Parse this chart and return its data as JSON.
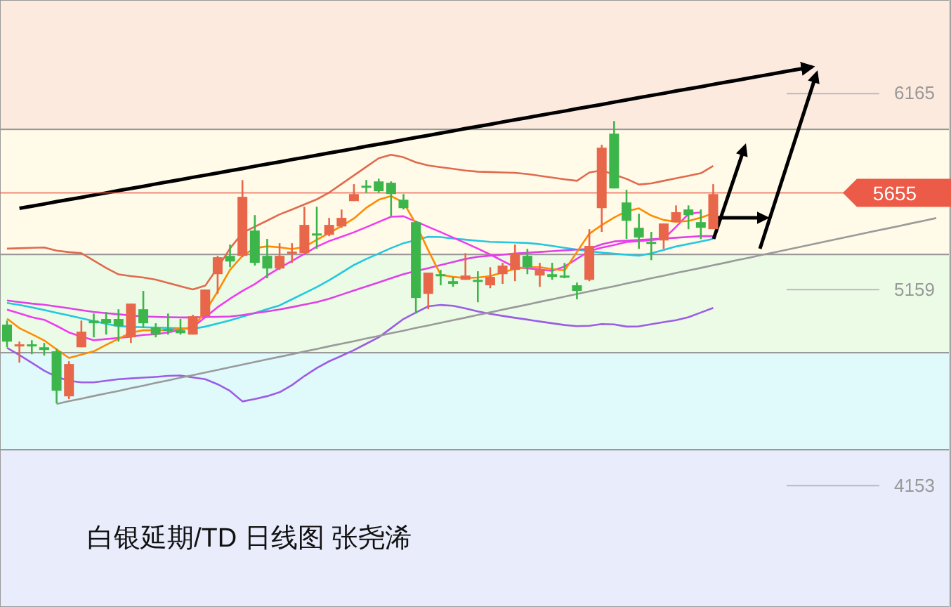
{
  "chart_data": {
    "type": "candlestick",
    "title": "白银延期/TD  日线图 张尧浠",
    "categories": [
      null,
      null,
      null,
      null,
      null,
      null,
      null,
      null,
      null,
      null,
      null,
      null,
      null,
      null,
      null,
      null,
      null,
      null,
      null,
      null,
      null,
      null,
      null,
      null,
      null,
      null,
      null,
      null,
      null,
      null,
      null,
      null,
      null,
      null,
      null,
      null,
      null,
      null,
      null,
      null,
      null,
      null,
      null,
      null,
      null,
      null,
      null,
      null,
      null,
      null,
      null,
      null,
      null,
      null,
      null,
      null,
      null,
      null,
      null,
      null,
      null,
      null,
      null,
      null,
      null,
      null,
      null,
      null,
      null,
      null,
      null,
      null,
      null,
      null,
      null,
      null
    ],
    "ohlc": [
      [
        4979,
        5000,
        4863,
        4892
      ],
      [
        4871,
        4892,
        4784,
        4878
      ],
      [
        4878,
        4899,
        4827,
        4871
      ],
      [
        4863,
        4885,
        4820,
        4849
      ],
      [
        4842,
        4856,
        4575,
        4640
      ],
      [
        4611,
        4791,
        4597,
        4777
      ],
      [
        4863,
        5000,
        4863,
        4943
      ],
      [
        5000,
        5036,
        4914,
        4986
      ],
      [
        5008,
        5044,
        4928,
        4986
      ],
      [
        5008,
        5058,
        4892,
        4971
      ],
      [
        4914,
        5087,
        4885,
        5087
      ],
      [
        5058,
        5152,
        4964,
        4986
      ],
      [
        4964,
        4986,
        4914,
        4928
      ],
      [
        4957,
        5036,
        4928,
        4950
      ],
      [
        4950,
        5008,
        4928,
        4935
      ],
      [
        4928,
        5029,
        4928,
        5022
      ],
      [
        5022,
        5159,
        5022,
        5159
      ],
      [
        5238,
        5332,
        5137,
        5325
      ],
      [
        5332,
        5390,
        5274,
        5303
      ],
      [
        5332,
        5721,
        5325,
        5635
      ],
      [
        5462,
        5541,
        5282,
        5296
      ],
      [
        5332,
        5419,
        5217,
        5267
      ],
      [
        5267,
        5397,
        5260,
        5332
      ],
      [
        5346,
        5397,
        5296,
        5354
      ],
      [
        5346,
        5584,
        5346,
        5491
      ],
      [
        5447,
        5584,
        5368,
        5440
      ],
      [
        5440,
        5527,
        5433,
        5491
      ],
      [
        5483,
        5570,
        5476,
        5527
      ],
      [
        5613,
        5700,
        5613,
        5649
      ],
      [
        5692,
        5721,
        5656,
        5685
      ],
      [
        5714,
        5728,
        5656,
        5664
      ],
      [
        5707,
        5714,
        5534,
        5649
      ],
      [
        5620,
        5649,
        5570,
        5577
      ],
      [
        5505,
        5512,
        5036,
        5116
      ],
      [
        5137,
        5246,
        5058,
        5246
      ],
      [
        5238,
        5260,
        5181,
        5231
      ],
      [
        5202,
        5224,
        5173,
        5188
      ],
      [
        5209,
        5346,
        5209,
        5231
      ],
      [
        5209,
        5253,
        5094,
        5202
      ],
      [
        5181,
        5274,
        5166,
        5224
      ],
      [
        5238,
        5296,
        5188,
        5282
      ],
      [
        5260,
        5390,
        5202,
        5346
      ],
      [
        5332,
        5368,
        5238,
        5274
      ],
      [
        5231,
        5296,
        5173,
        5260
      ],
      [
        5238,
        5296,
        5209,
        5224
      ],
      [
        5231,
        5296,
        5217,
        5224
      ],
      [
        5181,
        5195,
        5109,
        5152
      ],
      [
        5209,
        5469,
        5202,
        5383
      ],
      [
        5577,
        5902,
        5455,
        5887
      ],
      [
        5959,
        6024,
        5678,
        5678
      ],
      [
        5606,
        5671,
        5419,
        5512
      ],
      [
        5476,
        5548,
        5368,
        5426
      ],
      [
        5404,
        5455,
        5310,
        5397
      ],
      [
        5411,
        5498,
        5368,
        5498
      ],
      [
        5505,
        5591,
        5505,
        5556
      ],
      [
        5570,
        5591,
        5469,
        5541
      ],
      [
        5505,
        5570,
        5419,
        5476
      ],
      [
        5469,
        5700,
        5469,
        5649
      ],
      null,
      null,
      null,
      null,
      null,
      null,
      null,
      null,
      null,
      null,
      null,
      null,
      null,
      null,
      null,
      null,
      null,
      null
    ],
    "colors": [
      "#3cb54a",
      "#e8674a",
      "#3cb54a",
      "#3cb54a",
      "#3cb54a",
      "#e8674a",
      "#e8674a",
      "#3cb54a",
      "#3cb54a",
      "#3cb54a",
      "#e8674a",
      "#3cb54a",
      "#3cb54a",
      "#3cb54a",
      "#3cb54a",
      "#e8674a",
      "#e8674a",
      "#e8674a",
      "#3cb54a",
      "#e8674a",
      "#3cb54a",
      "#3cb54a",
      "#e8674a",
      "#e8674a",
      "#e8674a",
      "#3cb54a",
      "#e8674a",
      "#e8674a",
      "#e8674a",
      "#3cb54a",
      "#3cb54a",
      "#3cb54a",
      "#3cb54a",
      "#3cb54a",
      "#e8674a",
      "#3cb54a",
      "#3cb54a",
      "#e8674a",
      "#3cb54a",
      "#e8674a",
      "#e8674a",
      "#e8674a",
      "#3cb54a",
      "#e8674a",
      "#3cb54a",
      "#3cb54a",
      "#3cb54a",
      "#e8674a",
      "#e8674a",
      "#3cb54a",
      "#3cb54a",
      "#3cb54a",
      "#3cb54a",
      "#e8674a",
      "#e8674a",
      "#3cb54a",
      "#3cb54a",
      "#e8674a",
      null,
      null,
      null,
      null,
      null,
      null,
      null,
      null,
      null,
      null,
      null,
      null,
      null,
      null,
      null,
      null,
      null,
      null
    ],
    "series": [
      {
        "type": "line",
        "color": "#e06a4e",
        "values": [
          5369,
          5371,
          5373,
          5375,
          5359,
          5351,
          5346,
          5308,
          5270,
          5237,
          5228,
          5221,
          5210,
          5193,
          5176,
          5160,
          5179,
          5271,
          5370,
          5450,
          5482,
          5513,
          5545,
          5570,
          5596,
          5622,
          5657,
          5701,
          5745,
          5789,
          5833,
          5851,
          5838,
          5812,
          5796,
          5787,
          5779,
          5770,
          5764,
          5762,
          5760,
          5758,
          5752,
          5743,
          5734,
          5725,
          5717,
          5760,
          5771,
          5749,
          5727,
          5698,
          5704,
          5717,
          5730,
          5743,
          5756,
          5794,
          null,
          null,
          null,
          null,
          null,
          null,
          null,
          null,
          null,
          null,
          null,
          null,
          null,
          null,
          null,
          null,
          null,
          null
        ]
      },
      {
        "type": "line",
        "color": "#9b5de5",
        "values": [
          4860,
          4823,
          4783,
          4743,
          4711,
          4691,
          4683,
          4683,
          4691,
          4699,
          4703,
          4707,
          4711,
          4716,
          4718,
          4708,
          4699,
          4673,
          4639,
          4585,
          4597,
          4612,
          4632,
          4669,
          4715,
          4756,
          4791,
          4819,
          4848,
          4881,
          4914,
          4961,
          5008,
          5041,
          5073,
          5080,
          5076,
          5062,
          5047,
          5034,
          5024,
          5014,
          5005,
          4995,
          4986,
          4977,
          4971,
          4973,
          4982,
          4980,
          4969,
          4970,
          4981,
          4992,
          5002,
          5017,
          5041,
          5065,
          null,
          null,
          null,
          null,
          null,
          null,
          null,
          null,
          null,
          null,
          null,
          null,
          null,
          null,
          null,
          null,
          null,
          null
        ]
      },
      {
        "type": "line",
        "color": "#22c7e0",
        "values": [
          5090,
          5080,
          5068,
          5054,
          5040,
          5026,
          5012,
          4997,
          4983,
          4971,
          4968,
          4966,
          4964,
          4962,
          4960,
          4958,
          4969,
          4985,
          5001,
          5020,
          5039,
          5059,
          5078,
          5109,
          5140,
          5172,
          5207,
          5246,
          5285,
          5316,
          5344,
          5372,
          5397,
          5413,
          5430,
          5428,
          5421,
          5415,
          5409,
          5404,
          5402,
          5400,
          5398,
          5392,
          5383,
          5373,
          5364,
          5355,
          5349,
          5343,
          5338,
          5333,
          5345,
          5362,
          5380,
          5393,
          5406,
          5419,
          null,
          null,
          null,
          null,
          null,
          null,
          null,
          null,
          null,
          null,
          null,
          null,
          null,
          null,
          null,
          null,
          null,
          null
        ]
      },
      {
        "type": "line",
        "color": "#e040e6",
        "values": [
          5103,
          5095,
          5087,
          5081,
          5072,
          5063,
          5053,
          5044,
          5038,
          5032,
          5026,
          5021,
          5019,
          5017,
          5016,
          5016,
          5018,
          5019,
          5021,
          5028,
          5038,
          5047,
          5057,
          5069,
          5082,
          5095,
          5112,
          5133,
          5154,
          5175,
          5196,
          5217,
          5238,
          5254,
          5269,
          5285,
          5300,
          5316,
          5327,
          5333,
          5338,
          5344,
          5348,
          5352,
          5356,
          5360,
          5364,
          5368,
          5391,
          5406,
          5410,
          5414,
          5417,
          5421,
          5425,
          5429,
          5433,
          5433,
          null,
          null,
          null,
          null,
          null,
          null,
          null,
          null,
          null,
          null,
          null,
          null,
          null,
          null,
          null,
          null,
          null,
          null
        ]
      },
      {
        "type": "line",
        "color": "#f03cf0",
        "values": [
          5056,
          5037,
          5017,
          5004,
          4973,
          4939,
          4918,
          4899,
          4905,
          4911,
          4917,
          4926,
          4930,
          4939,
          4953,
          4967,
          5017,
          5069,
          5112,
          5152,
          5187,
          5231,
          5270,
          5306,
          5342,
          5379,
          5408,
          5430,
          5453,
          5479,
          5506,
          5533,
          5535,
          5508,
          5481,
          5454,
          5426,
          5398,
          5369,
          5339,
          5306,
          5274,
          5268,
          5262,
          5255,
          5277,
          5317,
          5357,
          5374,
          5388,
          5403,
          5408,
          5413,
          5419,
          5481,
          5548,
          5555,
          null,
          null,
          null,
          null,
          null,
          null,
          null,
          null,
          null,
          null,
          null,
          null,
          null,
          null,
          null,
          null,
          null,
          null,
          null
        ]
      },
      {
        "type": "line",
        "color": "#ff8c00",
        "values": [
          5010,
          4961,
          4930,
          4898,
          4852,
          4808,
          4825,
          4842,
          4875,
          4907,
          4938,
          4950,
          4950,
          4952,
          4958,
          4964,
          5047,
          5149,
          5260,
          5332,
          5372,
          5381,
          5376,
          5367,
          5378,
          5414,
          5449,
          5485,
          5524,
          5579,
          5620,
          5639,
          5606,
          5496,
          5360,
          5235,
          5224,
          5218,
          5221,
          5228,
          5247,
          5266,
          5274,
          5274,
          5264,
          5257,
          5352,
          5446,
          5490,
          5529,
          5561,
          5576,
          5539,
          5516,
          5507,
          5511,
          5528,
          5550,
          null,
          null,
          null,
          null,
          null,
          null,
          null,
          null,
          null,
          null,
          null,
          null,
          null,
          null,
          null,
          null,
          null,
          null
        ]
      },
      {
        "type": "line",
        "color": "#9a9a9a",
        "values": [
          null,
          null,
          null,
          null,
          4572,
          4586,
          4599,
          4613,
          4626,
          4639,
          4653,
          4666,
          4680,
          4693,
          4707,
          4720,
          4733,
          4747,
          4760,
          4774,
          4787,
          4801,
          4814,
          4827,
          4841,
          4854,
          4868,
          4881,
          4894,
          4908,
          4921,
          4935,
          4948,
          4962,
          4975,
          4988,
          5002,
          5015,
          5029,
          5042,
          5056,
          5069,
          5082,
          5096,
          5109,
          5123,
          5136,
          5150,
          5163,
          5176,
          5190,
          5203,
          5217,
          5230,
          5244,
          5257,
          5270,
          5284,
          5297,
          5311,
          5324,
          5338,
          5351,
          5364,
          5378,
          5391,
          5405,
          5418,
          5432,
          5445,
          5459,
          5472,
          5485,
          5499,
          5512,
          5526
        ]
      },
      {
        "type": "line",
        "color": "#000000",
        "values": [
          null,
          5576,
          5587,
          5598,
          5610,
          5621,
          5632,
          5644,
          5655,
          5667,
          5678,
          5689,
          5701,
          5712,
          5723,
          5735,
          5746,
          5757,
          5769,
          5780,
          5792,
          5803,
          5814,
          5826,
          5837,
          5848,
          5860,
          5871,
          5882,
          5894,
          5905,
          5916,
          5928,
          5939,
          5950,
          5962,
          5973,
          5985,
          5996,
          6007,
          6019,
          6030,
          6041,
          6053,
          6064,
          6075,
          6087,
          6098,
          6109,
          6121,
          6132,
          6144,
          6155,
          6166,
          6178,
          6189,
          6200,
          6212,
          6223,
          6234,
          6246,
          6257,
          6268,
          6280,
          6291,
          6302,
          null,
          null,
          null,
          null,
          null,
          null,
          null,
          null,
          null,
          null
        ]
      }
    ],
    "ylim": [
      3530,
      6645
    ],
    "yticks": [
      6165,
      5159,
      4153
    ],
    "ref_lines": [
      {
        "axis": "y",
        "value": 5655,
        "label": "5655",
        "color": "#ec5a48"
      }
    ],
    "bands": [
      {
        "axis": "y",
        "from": 5981,
        "to": 6645,
        "color": "#fdeadf"
      },
      {
        "axis": "y",
        "from": 5339,
        "to": 5981,
        "color": "#fffbe8"
      },
      {
        "axis": "y",
        "from": 4835,
        "to": 5339,
        "color": "#ecfbe6"
      },
      {
        "axis": "y",
        "from": 4337,
        "to": 4835,
        "color": "#e0fafc"
      },
      {
        "axis": "y",
        "from": 3530,
        "to": 4337,
        "color": "#e8ecfb"
      }
    ]
  }
}
